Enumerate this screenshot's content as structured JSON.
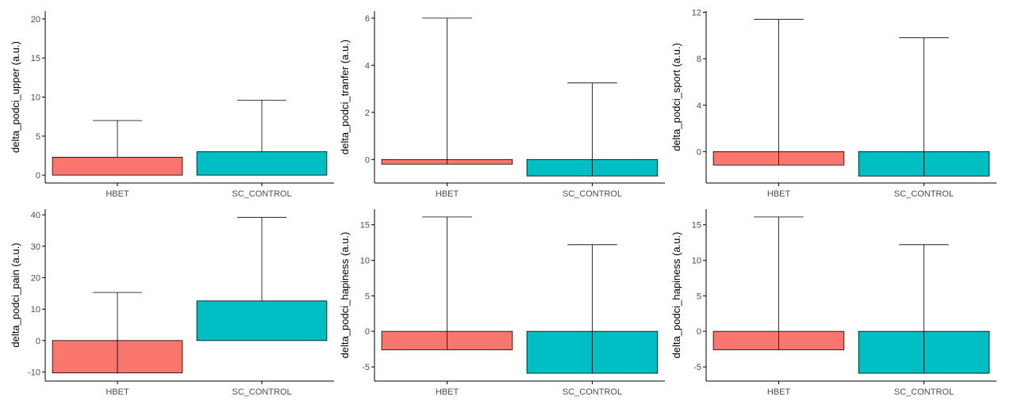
{
  "colors": {
    "HBET": "#F8766D",
    "SC_CONTROL": "#00BFC4",
    "axis": "#000000",
    "tick_label": "#4D4D4D"
  },
  "chart_data": [
    {
      "type": "bar",
      "ylabel": "delta_podci_upper (a.u.)",
      "categories": [
        "HBET",
        "SC_CONTROL"
      ],
      "values": [
        2.3,
        3.0
      ],
      "error_upper": [
        7.0,
        9.6
      ],
      "error_lower": [
        2.3,
        3.0
      ],
      "ylim": [
        -1,
        21
      ],
      "yticks": [
        0,
        5,
        10,
        15,
        20
      ],
      "ytick_labels": [
        "0",
        "5",
        "10",
        "15",
        "20"
      ]
    },
    {
      "type": "bar",
      "ylabel": "delta_podci_tranfer (a.u.)",
      "categories": [
        "HBET",
        "SC_CONTROL"
      ],
      "values": [
        -0.2,
        -0.7
      ],
      "error_upper": [
        6.0,
        3.25
      ],
      "error_lower": [
        -0.2,
        -0.7
      ],
      "ylim": [
        -1,
        6.3
      ],
      "yticks": [
        0,
        2,
        4,
        6
      ],
      "ytick_labels": [
        "0",
        "2",
        "4",
        "6"
      ]
    },
    {
      "type": "bar",
      "ylabel": "delta_podci_sport (a.u.)",
      "categories": [
        "HBET",
        "SC_CONTROL"
      ],
      "values": [
        -1.15,
        -2.1
      ],
      "error_upper": [
        11.4,
        9.8
      ],
      "error_lower": [
        -1.15,
        -2.1
      ],
      "ylim": [
        -2.7,
        12.1
      ],
      "yticks": [
        0,
        4,
        8,
        12
      ],
      "ytick_labels": [
        "0",
        "4",
        "8",
        "12"
      ]
    },
    {
      "type": "bar",
      "ylabel": "delta_podci_pain (a.u.)",
      "categories": [
        "HBET",
        "SC_CONTROL"
      ],
      "values": [
        -10.3,
        12.6
      ],
      "error_upper": [
        15.3,
        39.2
      ],
      "error_lower": [
        -10.3,
        12.6
      ],
      "ylim": [
        -12.9,
        41.8
      ],
      "yticks": [
        -10,
        0,
        10,
        20,
        30,
        40
      ],
      "ytick_labels": [
        "-10",
        "0",
        "10",
        "20",
        "30",
        "40"
      ]
    },
    {
      "type": "bar",
      "ylabel": "delta_podci_hapiness (a.u.)",
      "categories": [
        "HBET",
        "SC_CONTROL"
      ],
      "values": [
        -2.6,
        -5.9
      ],
      "error_upper": [
        16.1,
        12.2
      ],
      "error_lower": [
        -2.6,
        -5.9
      ],
      "ylim": [
        -7.0,
        17.2
      ],
      "yticks": [
        -5,
        0,
        5,
        10,
        15
      ],
      "ytick_labels": [
        "-5",
        "0",
        "5",
        "10",
        "15"
      ]
    },
    {
      "type": "bar",
      "ylabel": "delta_podci_hapiness (a.u.)",
      "categories": [
        "HBET",
        "SC_CONTROL"
      ],
      "values": [
        -2.6,
        -5.9
      ],
      "error_upper": [
        16.1,
        12.2
      ],
      "error_lower": [
        -2.6,
        -5.9
      ],
      "ylim": [
        -7.0,
        17.2
      ],
      "yticks": [
        -5,
        0,
        5,
        10,
        15
      ],
      "ytick_labels": [
        "-5",
        "0",
        "5",
        "10",
        "15"
      ]
    }
  ]
}
